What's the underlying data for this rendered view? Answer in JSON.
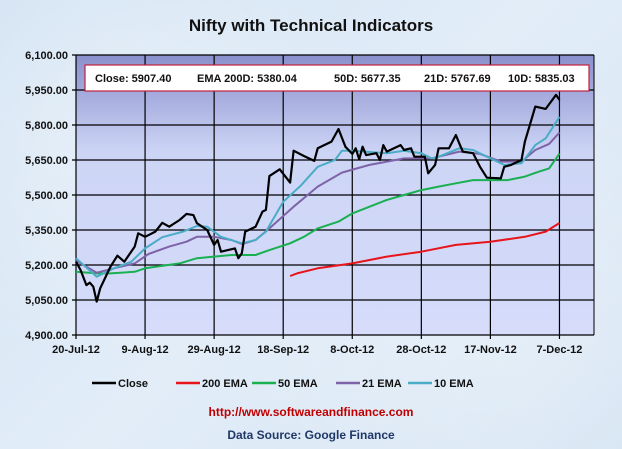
{
  "chart_data": {
    "type": "line",
    "title": "Nifty with Technical Indicators",
    "xlabel": "",
    "ylabel": "",
    "ylim": [
      4900,
      6100
    ],
    "y_ticks": [
      "6,100.00",
      "5,950.00",
      "5,800.00",
      "5,650.00",
      "5,500.00",
      "5,350.00",
      "5,200.00",
      "5,050.00",
      "4,900.00"
    ],
    "y_tick_values": [
      6100,
      5950,
      5800,
      5650,
      5500,
      5350,
      5200,
      5050,
      4900
    ],
    "x_unit": "days since 20-Jul-12",
    "xlim": [
      0,
      150
    ],
    "x_ticks": [
      "20-Jul-12",
      "9-Aug-12",
      "29-Aug-12",
      "18-Sep-12",
      "8-Oct-12",
      "28-Oct-12",
      "17-Nov-12",
      "7-Dec-12"
    ],
    "x_tick_values": [
      0,
      20,
      40,
      60,
      80,
      100,
      120,
      140
    ],
    "grid": true,
    "legend_position": "bottom",
    "annotation": {
      "close": "Close: 5907.40",
      "ema200": "EMA  200D: 5380.04",
      "ema50": "50D: 5677.35",
      "ema21": "21D: 5767.69",
      "ema10": "10D: 5835.03"
    },
    "series": [
      {
        "name": "Close",
        "color": "#000000",
        "points": [
          [
            0,
            5214
          ],
          [
            1.3,
            5179
          ],
          [
            3,
            5114
          ],
          [
            4,
            5124
          ],
          [
            5,
            5107
          ],
          [
            6,
            5043
          ],
          [
            7,
            5100
          ],
          [
            10,
            5193
          ],
          [
            12,
            5240
          ],
          [
            14,
            5214
          ],
          [
            17,
            5279
          ],
          [
            18,
            5336
          ],
          [
            20,
            5321
          ],
          [
            23,
            5343
          ],
          [
            25,
            5381
          ],
          [
            27,
            5364
          ],
          [
            30,
            5393
          ],
          [
            32,
            5419
          ],
          [
            34,
            5414
          ],
          [
            35,
            5379
          ],
          [
            38,
            5350
          ],
          [
            40,
            5286
          ],
          [
            41,
            5307
          ],
          [
            42,
            5257
          ],
          [
            46,
            5271
          ],
          [
            47,
            5229
          ],
          [
            48,
            5250
          ],
          [
            49,
            5343
          ],
          [
            52,
            5364
          ],
          [
            54,
            5429
          ],
          [
            55,
            5436
          ],
          [
            56,
            5581
          ],
          [
            59,
            5610
          ],
          [
            62,
            5553
          ],
          [
            63,
            5690
          ],
          [
            66,
            5667
          ],
          [
            69,
            5646
          ],
          [
            70,
            5700
          ],
          [
            74,
            5729
          ],
          [
            76,
            5783
          ],
          [
            78,
            5707
          ],
          [
            80,
            5676
          ],
          [
            81,
            5700
          ],
          [
            82,
            5653
          ],
          [
            83,
            5707
          ],
          [
            84,
            5671
          ],
          [
            87,
            5679
          ],
          [
            88,
            5650
          ],
          [
            89,
            5714
          ],
          [
            90,
            5686
          ],
          [
            94,
            5714
          ],
          [
            95,
            5693
          ],
          [
            97,
            5700
          ],
          [
            98,
            5664
          ],
          [
            101,
            5664
          ],
          [
            102,
            5593
          ],
          [
            104,
            5629
          ],
          [
            105,
            5700
          ],
          [
            108,
            5700
          ],
          [
            110,
            5757
          ],
          [
            111,
            5721
          ],
          [
            112,
            5686
          ],
          [
            115,
            5679
          ],
          [
            117,
            5621
          ],
          [
            119,
            5574
          ],
          [
            123,
            5571
          ],
          [
            124,
            5621
          ],
          [
            126,
            5629
          ],
          [
            129,
            5650
          ],
          [
            130,
            5729
          ],
          [
            133,
            5879
          ],
          [
            136,
            5869
          ],
          [
            139,
            5929
          ],
          [
            140,
            5907.4
          ]
        ]
      },
      {
        "name": "200 EMA",
        "color": "#e8141b",
        "points": [
          [
            62,
            5153
          ],
          [
            64,
            5164
          ],
          [
            70,
            5186
          ],
          [
            80,
            5207
          ],
          [
            90,
            5236
          ],
          [
            100,
            5257
          ],
          [
            110,
            5286
          ],
          [
            120,
            5300
          ],
          [
            130,
            5321
          ],
          [
            136,
            5343
          ],
          [
            140,
            5380.04
          ]
        ]
      },
      {
        "name": "50 EMA",
        "color": "#18b050",
        "points": [
          [
            0,
            5171
          ],
          [
            6,
            5164
          ],
          [
            10,
            5164
          ],
          [
            17,
            5171
          ],
          [
            20,
            5186
          ],
          [
            30,
            5207
          ],
          [
            35,
            5229
          ],
          [
            40,
            5236
          ],
          [
            45,
            5243
          ],
          [
            52,
            5243
          ],
          [
            56,
            5264
          ],
          [
            62,
            5293
          ],
          [
            66,
            5321
          ],
          [
            70,
            5357
          ],
          [
            76,
            5386
          ],
          [
            80,
            5421
          ],
          [
            85,
            5450
          ],
          [
            90,
            5479
          ],
          [
            95,
            5500
          ],
          [
            100,
            5521
          ],
          [
            105,
            5536
          ],
          [
            110,
            5550
          ],
          [
            115,
            5564
          ],
          [
            120,
            5564
          ],
          [
            125,
            5564
          ],
          [
            130,
            5579
          ],
          [
            134,
            5600
          ],
          [
            137,
            5614
          ],
          [
            140,
            5677.35
          ]
        ]
      },
      {
        "name": "21 EMA",
        "color": "#7f63a8",
        "points": [
          [
            0,
            5219
          ],
          [
            6,
            5167
          ],
          [
            11,
            5186
          ],
          [
            17,
            5207
          ],
          [
            21,
            5247
          ],
          [
            27,
            5279
          ],
          [
            32,
            5300
          ],
          [
            35,
            5321
          ],
          [
            40,
            5321
          ],
          [
            45,
            5307
          ],
          [
            48,
            5290
          ],
          [
            52,
            5307
          ],
          [
            56,
            5357
          ],
          [
            63,
            5450
          ],
          [
            70,
            5536
          ],
          [
            77,
            5596
          ],
          [
            85,
            5629
          ],
          [
            95,
            5657
          ],
          [
            103,
            5657
          ],
          [
            105,
            5664
          ],
          [
            111,
            5686
          ],
          [
            117,
            5676
          ],
          [
            123,
            5643
          ],
          [
            129,
            5643
          ],
          [
            133,
            5693
          ],
          [
            137,
            5719
          ],
          [
            140,
            5767.69
          ]
        ]
      },
      {
        "name": "10 EMA",
        "color": "#4bacc6",
        "points": [
          [
            0,
            5229
          ],
          [
            6,
            5150
          ],
          [
            11,
            5186
          ],
          [
            16,
            5214
          ],
          [
            20,
            5271
          ],
          [
            25,
            5319
          ],
          [
            31,
            5343
          ],
          [
            35,
            5367
          ],
          [
            38,
            5364
          ],
          [
            42,
            5321
          ],
          [
            48,
            5293
          ],
          [
            52,
            5307
          ],
          [
            55,
            5343
          ],
          [
            60,
            5471
          ],
          [
            65,
            5539
          ],
          [
            70,
            5621
          ],
          [
            75,
            5650
          ],
          [
            77,
            5690
          ],
          [
            80,
            5690
          ],
          [
            90,
            5679
          ],
          [
            95,
            5690
          ],
          [
            100,
            5679
          ],
          [
            103,
            5657
          ],
          [
            105,
            5664
          ],
          [
            111,
            5700
          ],
          [
            115,
            5693
          ],
          [
            120,
            5657
          ],
          [
            124,
            5629
          ],
          [
            129,
            5636
          ],
          [
            133,
            5714
          ],
          [
            136,
            5743
          ],
          [
            140,
            5835.03
          ]
        ]
      }
    ]
  },
  "footer": {
    "url": "http://www.softwareandfinance.com",
    "source": "Data Source: Google Finance"
  }
}
